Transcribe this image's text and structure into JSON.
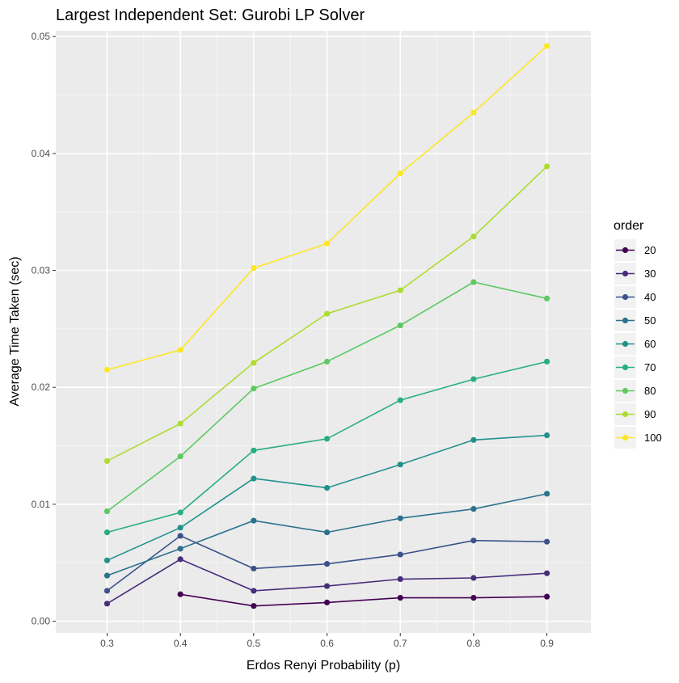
{
  "chart_data": {
    "type": "line",
    "title": "Largest Independent Set: Gurobi LP Solver",
    "xlabel": "Erdos Renyi Probability (p)",
    "ylabel": "Average Time Taken (sec)",
    "xlim": [
      0.23,
      0.96
    ],
    "ylim": [
      -0.001,
      0.0505
    ],
    "x_ticks": [
      0.3,
      0.4,
      0.5,
      0.6,
      0.7,
      0.8,
      0.9
    ],
    "x_tick_labels": [
      "0.3",
      "0.4",
      "0.5",
      "0.6",
      "0.7",
      "0.8",
      "0.9"
    ],
    "y_ticks": [
      0.0,
      0.01,
      0.02,
      0.03,
      0.04,
      0.05
    ],
    "y_tick_labels": [
      "0.00",
      "0.01",
      "0.02",
      "0.03",
      "0.04",
      "0.05"
    ],
    "grid": true,
    "panel_background": "#ebebeb",
    "legend": {
      "title": "order",
      "position": "right"
    },
    "series": [
      {
        "name": "20",
        "color": "#440154",
        "x": [
          0.4,
          0.5,
          0.6,
          0.7,
          0.8,
          0.9
        ],
        "values": [
          0.0023,
          0.0013,
          0.0016,
          0.002,
          0.002,
          0.0021
        ]
      },
      {
        "name": "30",
        "color": "#472d7b",
        "x": [
          0.3,
          0.4,
          0.5,
          0.6,
          0.7,
          0.8,
          0.9
        ],
        "values": [
          0.0015,
          0.0053,
          0.0026,
          0.003,
          0.0036,
          0.0037,
          0.0041
        ]
      },
      {
        "name": "40",
        "color": "#3b528b",
        "x": [
          0.3,
          0.4,
          0.5,
          0.6,
          0.7,
          0.8,
          0.9
        ],
        "values": [
          0.0026,
          0.0073,
          0.0045,
          0.0049,
          0.0057,
          0.0069,
          0.0068
        ]
      },
      {
        "name": "50",
        "color": "#2c728e",
        "x": [
          0.3,
          0.4,
          0.5,
          0.6,
          0.7,
          0.8,
          0.9
        ],
        "values": [
          0.0039,
          0.0062,
          0.0086,
          0.0076,
          0.0088,
          0.0096,
          0.0109
        ]
      },
      {
        "name": "60",
        "color": "#21918c",
        "x": [
          0.3,
          0.4,
          0.5,
          0.6,
          0.7,
          0.8,
          0.9
        ],
        "values": [
          0.0052,
          0.008,
          0.0122,
          0.0114,
          0.0134,
          0.0155,
          0.0159
        ]
      },
      {
        "name": "70",
        "color": "#28ae80",
        "x": [
          0.3,
          0.4,
          0.5,
          0.6,
          0.7,
          0.8,
          0.9
        ],
        "values": [
          0.0076,
          0.0093,
          0.0146,
          0.0156,
          0.0189,
          0.0207,
          0.0222
        ]
      },
      {
        "name": "80",
        "color": "#5ec962",
        "x": [
          0.3,
          0.4,
          0.5,
          0.6,
          0.7,
          0.8,
          0.9
        ],
        "values": [
          0.0094,
          0.0141,
          0.0199,
          0.0222,
          0.0253,
          0.029,
          0.0276
        ]
      },
      {
        "name": "90",
        "color": "#addc30",
        "x": [
          0.3,
          0.4,
          0.5,
          0.6,
          0.7,
          0.8,
          0.9
        ],
        "values": [
          0.0137,
          0.0169,
          0.0221,
          0.0263,
          0.0283,
          0.0329,
          0.0389
        ]
      },
      {
        "name": "100",
        "color": "#fde725",
        "x": [
          0.3,
          0.4,
          0.5,
          0.6,
          0.7,
          0.8,
          0.9
        ],
        "values": [
          0.0215,
          0.0232,
          0.0302,
          0.0323,
          0.0383,
          0.0435,
          0.0492
        ]
      }
    ]
  }
}
